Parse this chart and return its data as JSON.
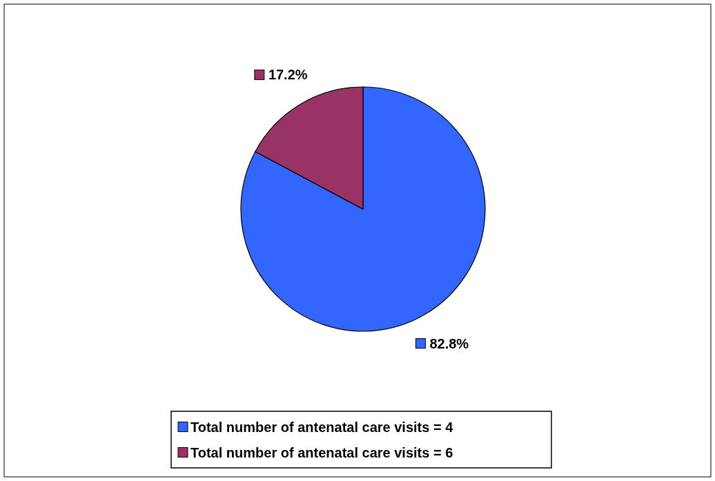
{
  "chart_data": {
    "type": "pie",
    "categories": [
      "Total number of antenatal care visits = 4",
      "Total number of antenatal care visits = 6"
    ],
    "values": [
      82.8,
      17.2
    ],
    "colors": [
      "#3366ff",
      "#993366"
    ],
    "value_labels": [
      "82.8%",
      "17.2%"
    ],
    "legend": "bottom"
  }
}
